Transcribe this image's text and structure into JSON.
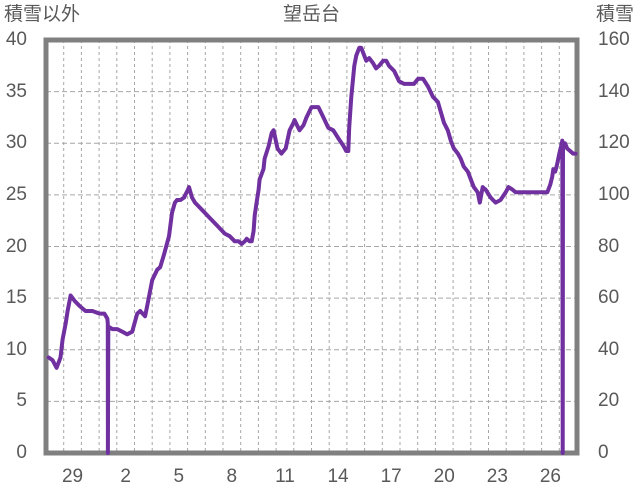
{
  "header": {
    "left_axis_title": "積雪以外",
    "chart_title": "望岳台",
    "right_axis_title": "積雪"
  },
  "colors": {
    "line": "#7030A0",
    "plot_border": "#808080",
    "gridline": "#A6A6A6",
    "text": "#595959",
    "background": "#FFFFFF"
  },
  "chart_data": {
    "type": "line",
    "title": "望岳台",
    "legend_position": "none",
    "grid": "on",
    "x_axis": {
      "range_days": [
        0,
        30
      ],
      "gridline_every_days": 1,
      "tick_labels": [
        "29",
        "2",
        "5",
        "8",
        "11",
        "14",
        "17",
        "20",
        "23",
        "26"
      ],
      "tick_positions_days": [
        1.5,
        4.5,
        7.5,
        10.5,
        13.5,
        16.5,
        19.5,
        22.5,
        25.5,
        28.5
      ]
    },
    "y_axis_left": {
      "title": "積雪以外",
      "range": [
        0,
        40
      ],
      "tick_step": 5,
      "tick_labels": [
        "0",
        "5",
        "10",
        "15",
        "20",
        "25",
        "30",
        "35",
        "40"
      ]
    },
    "y_axis_right": {
      "title": "積雪",
      "range": [
        0,
        160
      ],
      "tick_step": 20,
      "tick_labels": [
        "0",
        "20",
        "40",
        "60",
        "80",
        "100",
        "120",
        "140",
        "160"
      ]
    },
    "series": [
      {
        "name": "積雪",
        "axis": "right",
        "color": "#7030A0",
        "points": [
          [
            0.15,
            37
          ],
          [
            0.37,
            36
          ],
          [
            0.6,
            33
          ],
          [
            0.82,
            37
          ],
          [
            0.94,
            44
          ],
          [
            1.11,
            50
          ],
          [
            1.22,
            55
          ],
          [
            1.39,
            61
          ],
          [
            1.61,
            59
          ],
          [
            1.89,
            57
          ],
          [
            2.23,
            55
          ],
          [
            2.62,
            55
          ],
          [
            3.02,
            54
          ],
          [
            3.3,
            54
          ],
          [
            3.47,
            52
          ],
          [
            3.49,
            50
          ],
          [
            3.5,
            0
          ],
          [
            3.52,
            49
          ],
          [
            3.75,
            48
          ],
          [
            4.03,
            48
          ],
          [
            4.31,
            47
          ],
          [
            4.59,
            46
          ],
          [
            4.87,
            47
          ],
          [
            5.15,
            54
          ],
          [
            5.32,
            55
          ],
          [
            5.6,
            53
          ],
          [
            5.72,
            57
          ],
          [
            6.0,
            67
          ],
          [
            6.28,
            71
          ],
          [
            6.45,
            72
          ],
          [
            6.67,
            77
          ],
          [
            6.95,
            84
          ],
          [
            7.12,
            93
          ],
          [
            7.28,
            97
          ],
          [
            7.4,
            98
          ],
          [
            7.6,
            98
          ],
          [
            7.8,
            99
          ],
          [
            7.87,
            100
          ],
          [
            8.02,
            102
          ],
          [
            8.08,
            103
          ],
          [
            8.25,
            99
          ],
          [
            8.42,
            97
          ],
          [
            8.7,
            95
          ],
          [
            8.98,
            93
          ],
          [
            9.26,
            91
          ],
          [
            9.54,
            89
          ],
          [
            9.82,
            87
          ],
          [
            10.1,
            85
          ],
          [
            10.38,
            84
          ],
          [
            10.66,
            82
          ],
          [
            10.88,
            82
          ],
          [
            11.06,
            81
          ],
          [
            11.23,
            82
          ],
          [
            11.34,
            83
          ],
          [
            11.51,
            82
          ],
          [
            11.62,
            82
          ],
          [
            11.73,
            86
          ],
          [
            11.79,
            92
          ],
          [
            11.9,
            97
          ],
          [
            12.01,
            102
          ],
          [
            12.07,
            106
          ],
          [
            12.18,
            108
          ],
          [
            12.29,
            110
          ],
          [
            12.35,
            114
          ],
          [
            12.58,
            119
          ],
          [
            12.75,
            124
          ],
          [
            12.86,
            125
          ],
          [
            13.08,
            118
          ],
          [
            13.3,
            116
          ],
          [
            13.54,
            118
          ],
          [
            13.76,
            125
          ],
          [
            13.99,
            128
          ],
          [
            14.04,
            129
          ],
          [
            14.32,
            125
          ],
          [
            14.55,
            127
          ],
          [
            14.72,
            130
          ],
          [
            15.0,
            134
          ],
          [
            15.17,
            134
          ],
          [
            15.39,
            134
          ],
          [
            15.67,
            130
          ],
          [
            15.95,
            126
          ],
          [
            16.23,
            125
          ],
          [
            16.51,
            122
          ],
          [
            16.8,
            119
          ],
          [
            16.96,
            117
          ],
          [
            17.08,
            117
          ],
          [
            17.13,
            126
          ],
          [
            17.25,
            138
          ],
          [
            17.36,
            146
          ],
          [
            17.42,
            150
          ],
          [
            17.53,
            154
          ],
          [
            17.7,
            157
          ],
          [
            17.81,
            157
          ],
          [
            17.98,
            154
          ],
          [
            18.09,
            152
          ],
          [
            18.26,
            153
          ],
          [
            18.48,
            151
          ],
          [
            18.65,
            149
          ],
          [
            18.82,
            150
          ],
          [
            19.05,
            152
          ],
          [
            19.22,
            152
          ],
          [
            19.38,
            150
          ],
          [
            19.67,
            148
          ],
          [
            19.95,
            144
          ],
          [
            20.23,
            143
          ],
          [
            20.51,
            143
          ],
          [
            20.79,
            143
          ],
          [
            21.02,
            145
          ],
          [
            21.3,
            145
          ],
          [
            21.58,
            142
          ],
          [
            21.86,
            138
          ],
          [
            22.14,
            136
          ],
          [
            22.31,
            132
          ],
          [
            22.48,
            128
          ],
          [
            22.7,
            125
          ],
          [
            22.87,
            121
          ],
          [
            23.04,
            118
          ],
          [
            23.27,
            116
          ],
          [
            23.43,
            114
          ],
          [
            23.6,
            111
          ],
          [
            23.83,
            109
          ],
          [
            24.0,
            106
          ],
          [
            24.17,
            103
          ],
          [
            24.39,
            101
          ],
          [
            24.51,
            97
          ],
          [
            24.67,
            103
          ],
          [
            24.84,
            102
          ],
          [
            25.12,
            99
          ],
          [
            25.4,
            97
          ],
          [
            25.68,
            98
          ],
          [
            25.97,
            101
          ],
          [
            26.13,
            103
          ],
          [
            26.36,
            102
          ],
          [
            26.53,
            101
          ],
          [
            26.81,
            101
          ],
          [
            27.2,
            101
          ],
          [
            27.65,
            101
          ],
          [
            28.1,
            101
          ],
          [
            28.32,
            101
          ],
          [
            28.49,
            104
          ],
          [
            28.6,
            107
          ],
          [
            28.66,
            110
          ],
          [
            28.77,
            109
          ],
          [
            28.88,
            112
          ],
          [
            29.0,
            116
          ],
          [
            29.11,
            119
          ],
          [
            29.17,
            121
          ],
          [
            29.19,
            0
          ],
          [
            29.21,
            120
          ],
          [
            29.33,
            120
          ],
          [
            29.44,
            118
          ],
          [
            29.61,
            117
          ],
          [
            29.78,
            116
          ],
          [
            29.92,
            116
          ]
        ]
      }
    ]
  }
}
